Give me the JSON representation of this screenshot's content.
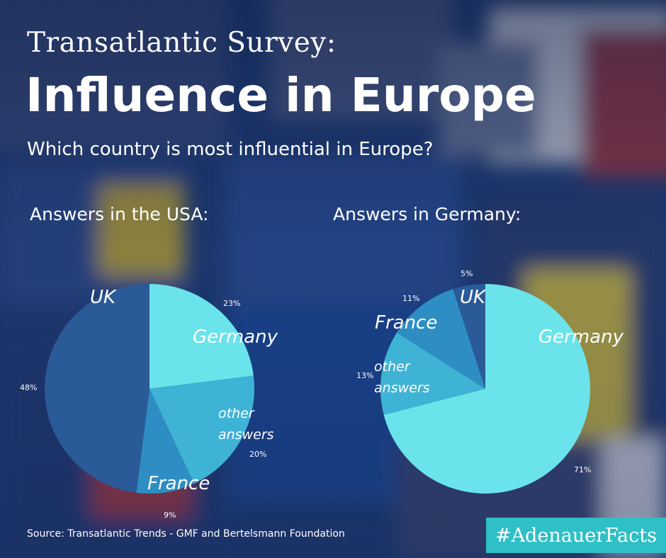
{
  "header": {
    "pretitle": "Transatlantic Survey:",
    "title": "Influence in Europe",
    "subtitle": "Which country is most influential in Europe?"
  },
  "chart_data": [
    {
      "type": "pie",
      "title": "Answers in the USA:",
      "slices": [
        {
          "label": "Germany",
          "value": 23,
          "value_label": "23%",
          "color": "#6ae4ea"
        },
        {
          "label": "other answers",
          "value": 20,
          "value_label": "20%",
          "color": "#3fb3d5"
        },
        {
          "label": "France",
          "value": 9,
          "value_label": "9%",
          "color": "#2e8ec3"
        },
        {
          "label": "UK",
          "value": 48,
          "value_label": "48%",
          "color": "#2a5a98"
        }
      ]
    },
    {
      "type": "pie",
      "title": "Answers in Germany:",
      "slices": [
        {
          "label": "Germany",
          "value": 71,
          "value_label": "71%",
          "color": "#6ae4ea"
        },
        {
          "label": "other answers",
          "value": 13,
          "value_label": "13%",
          "color": "#3fb3d5"
        },
        {
          "label": "France",
          "value": 11,
          "value_label": "11%",
          "color": "#2e8ec3"
        },
        {
          "label": "UK",
          "value": 5,
          "value_label": "5%",
          "color": "#2a5a98"
        }
      ]
    }
  ],
  "footer": {
    "source": "Source: Transatlantic Trends  - GMF and Bertelsmann Foundation",
    "hashtag": "#AdenauerFacts"
  }
}
